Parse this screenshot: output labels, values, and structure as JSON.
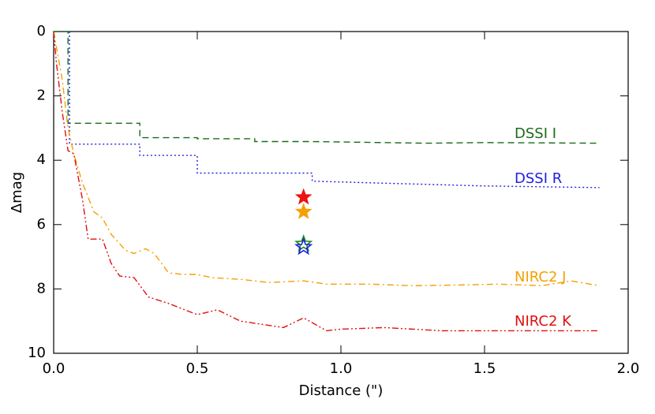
{
  "chart_data": {
    "type": "line",
    "xlabel": "Distance (\")",
    "ylabel": "Δmag",
    "xlim": [
      0,
      2
    ],
    "ylim": [
      10,
      0
    ],
    "y_inverted": true,
    "xticks": [
      {
        "value": 0,
        "label": "0.0"
      },
      0.5,
      {
        "value": 1,
        "label": "1.0"
      },
      1.5,
      {
        "value": 2,
        "label": "2.0"
      }
    ],
    "yticks": [
      0,
      2,
      4,
      6,
      8,
      10
    ],
    "series": [
      {
        "name": "DSSI I",
        "color": "#1a6b1a",
        "dash": "dashed",
        "x": [
          0,
          0.05,
          0.05,
          0.3,
          0.3,
          0.5,
          0.5,
          0.7,
          0.7,
          0.9,
          1.3,
          1.5,
          1.9
        ],
        "values": [
          0,
          0,
          2.85,
          2.85,
          3.3,
          3.3,
          3.33,
          3.33,
          3.42,
          3.42,
          3.47,
          3.45,
          3.47
        ]
      },
      {
        "name": "DSSI R",
        "color": "#2020e0",
        "dash": "dotted",
        "x": [
          0.055,
          0.055,
          0.3,
          0.3,
          0.5,
          0.5,
          0.9,
          0.9,
          1.1,
          1.3,
          1.5,
          1.9
        ],
        "values": [
          0,
          3.5,
          3.5,
          3.85,
          3.85,
          4.4,
          4.4,
          4.65,
          4.7,
          4.75,
          4.8,
          4.85
        ]
      },
      {
        "name": "NIRC2 J",
        "color": "#f5a000",
        "dash": "dashdot",
        "x": [
          0,
          0.01,
          0.03,
          0.05,
          0.07,
          0.1,
          0.14,
          0.17,
          0.2,
          0.25,
          0.28,
          0.32,
          0.35,
          0.4,
          0.45,
          0.5,
          0.55,
          0.65,
          0.75,
          0.87,
          0.95,
          1.1,
          1.25,
          1.4,
          1.55,
          1.7,
          1.8,
          1.9
        ],
        "values": [
          0,
          0.5,
          1.5,
          3.0,
          3.8,
          4.7,
          5.6,
          5.8,
          6.3,
          6.8,
          6.9,
          6.75,
          6.9,
          7.5,
          7.55,
          7.55,
          7.65,
          7.7,
          7.8,
          7.75,
          7.85,
          7.85,
          7.9,
          7.88,
          7.85,
          7.9,
          7.75,
          7.9
        ]
      },
      {
        "name": "NIRC2 K",
        "color": "#e01010",
        "dash": "dashdotdot",
        "x": [
          0,
          0.01,
          0.03,
          0.05,
          0.07,
          0.1,
          0.12,
          0.17,
          0.2,
          0.23,
          0.28,
          0.33,
          0.4,
          0.5,
          0.57,
          0.65,
          0.8,
          0.87,
          0.95,
          1.0,
          1.15,
          1.35,
          1.5,
          1.7,
          1.9
        ],
        "values": [
          0,
          1,
          2.5,
          3.7,
          3.8,
          5.2,
          6.45,
          6.45,
          7.2,
          7.6,
          7.65,
          8.25,
          8.45,
          8.8,
          8.65,
          9.0,
          9.2,
          8.9,
          9.3,
          9.25,
          9.2,
          9.3,
          9.3,
          9.3,
          9.3
        ]
      }
    ],
    "stars": [
      {
        "x": 0.87,
        "y": 5.15,
        "color": "#ee1111",
        "filled": true
      },
      {
        "x": 0.87,
        "y": 5.6,
        "color": "#f5a000",
        "filled": true
      },
      {
        "x": 0.87,
        "y": 6.6,
        "color": "#1a8a1a",
        "filled": false
      },
      {
        "x": 0.87,
        "y": 6.7,
        "color": "#2020e0",
        "filled": false
      }
    ]
  }
}
